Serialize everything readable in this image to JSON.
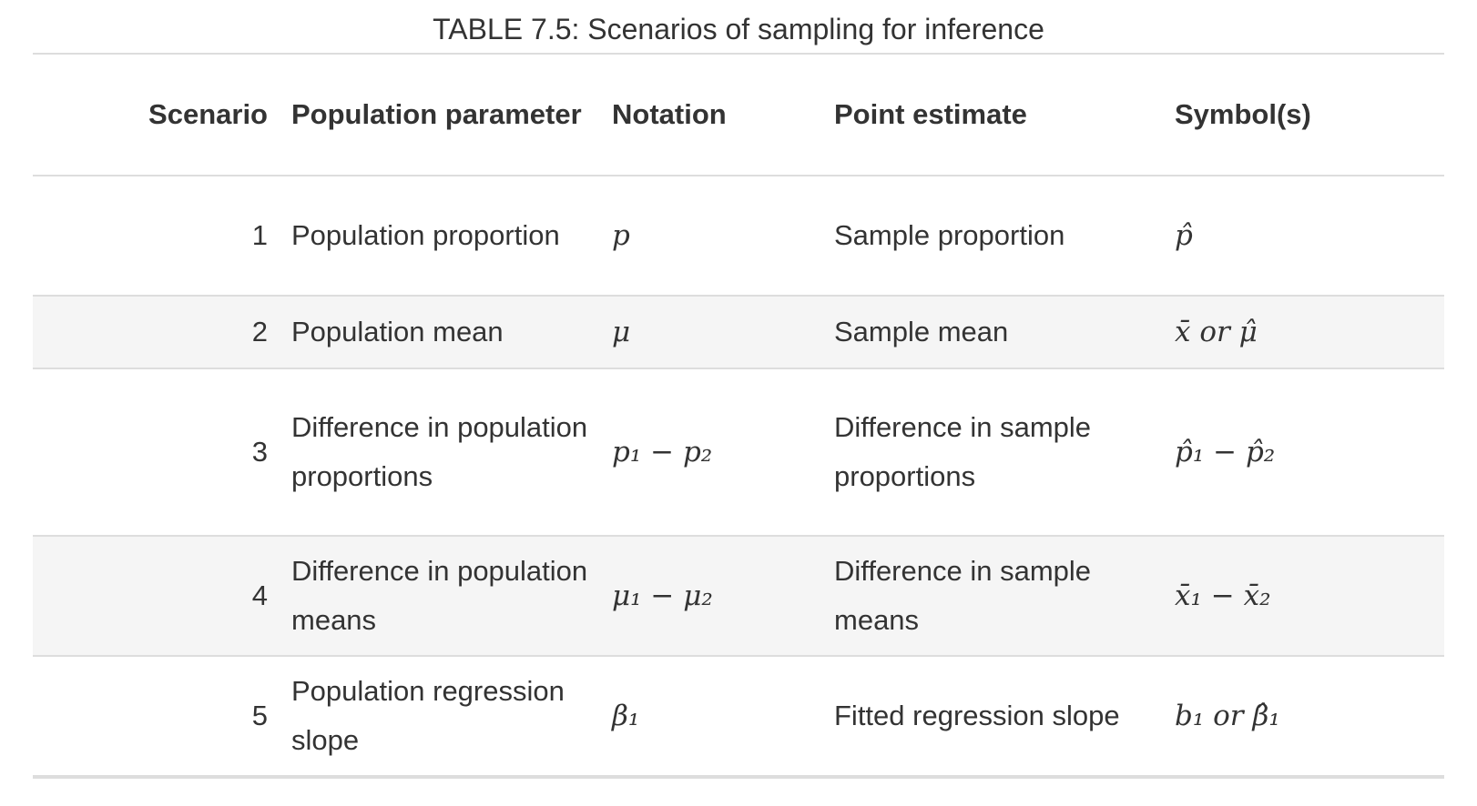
{
  "caption": "TABLE 7.5: Scenarios of sampling for inference",
  "columns": [
    "Scenario",
    "Population parameter",
    "Notation",
    "Point estimate",
    "Symbol(s)"
  ],
  "rows": [
    {
      "scenario": "1",
      "parameter": "Population proportion",
      "notation": "p",
      "estimate": "Sample proportion",
      "symbols": "p̂"
    },
    {
      "scenario": "2",
      "parameter": "Population mean",
      "notation": "μ",
      "estimate": "Sample mean",
      "symbols": "x̄ or μ̂"
    },
    {
      "scenario": "3",
      "parameter": "Difference in population proportions",
      "notation": "p₁ − p₂",
      "estimate": "Difference in sample proportions",
      "symbols": "p̂₁ − p̂₂"
    },
    {
      "scenario": "4",
      "parameter": "Difference in population means",
      "notation": "μ₁ − μ₂",
      "estimate": "Difference in sample means",
      "symbols": "x̄₁ − x̄₂"
    },
    {
      "scenario": "5",
      "parameter": "Population regression slope",
      "notation": "β₁",
      "estimate": "Fitted regression slope",
      "symbols": "b₁ or β̂₁"
    }
  ]
}
